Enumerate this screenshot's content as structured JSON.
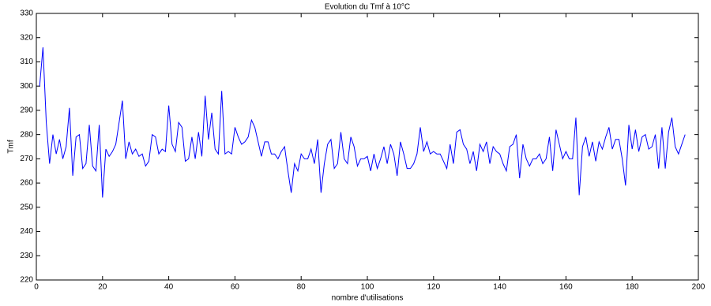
{
  "chart_data": {
    "type": "line",
    "title": "Evolution du Tmf à 10°C",
    "x_label": "nombre d'utilisations",
    "y_label": "Tmf",
    "x": [
      1,
      2,
      3,
      4,
      5,
      6,
      7,
      8,
      9,
      10,
      11,
      12,
      13,
      14,
      15,
      16,
      17,
      18,
      19,
      20,
      21,
      22,
      23,
      24,
      25,
      26,
      27,
      28,
      29,
      30,
      31,
      32,
      33,
      34,
      35,
      36,
      37,
      38,
      39,
      40,
      41,
      42,
      43,
      44,
      45,
      46,
      47,
      48,
      49,
      50,
      51,
      52,
      53,
      54,
      55,
      56,
      57,
      58,
      59,
      60,
      61,
      62,
      63,
      64,
      65,
      66,
      67,
      68,
      69,
      70,
      71,
      72,
      73,
      74,
      75,
      76,
      77,
      78,
      79,
      80,
      81,
      82,
      83,
      84,
      85,
      86,
      87,
      88,
      89,
      90,
      91,
      92,
      93,
      94,
      95,
      96,
      97,
      98,
      99,
      100,
      101,
      102,
      103,
      104,
      105,
      106,
      107,
      108,
      109,
      110,
      111,
      112,
      113,
      114,
      115,
      116,
      117,
      118,
      119,
      120,
      121,
      122,
      123,
      124,
      125,
      126,
      127,
      128,
      129,
      130,
      131,
      132,
      133,
      134,
      135,
      136,
      137,
      138,
      139,
      140,
      141,
      142,
      143,
      144,
      145,
      146,
      147,
      148,
      149,
      150,
      151,
      152,
      153,
      154,
      155,
      156,
      157,
      158,
      159,
      160,
      161,
      162,
      163,
      164,
      165,
      166,
      167,
      168,
      169,
      170,
      171,
      172,
      173,
      174,
      175,
      176,
      177,
      178,
      179,
      180,
      181,
      182,
      183,
      184,
      185,
      186,
      187,
      188,
      189,
      190,
      191,
      192,
      193,
      194,
      195,
      196
    ],
    "series": [
      {
        "name": "Tmf",
        "color": "#0000ff",
        "values": [
          300,
          316,
          285,
          268,
          280,
          272,
          278,
          270,
          275,
          291,
          263,
          279,
          280,
          266,
          268,
          284,
          267,
          265,
          284,
          254,
          274,
          271,
          273,
          276,
          285,
          294,
          270,
          277,
          272,
          274,
          271,
          272,
          267,
          269,
          280,
          279,
          272,
          274,
          273,
          292,
          276,
          273,
          285,
          283,
          269,
          270,
          279,
          270,
          281,
          271,
          296,
          278,
          289,
          274,
          272,
          298,
          272,
          273,
          272,
          283,
          279,
          276,
          277,
          279,
          286,
          283,
          277,
          271,
          277,
          277,
          272,
          272,
          270,
          273,
          275,
          265,
          256,
          268,
          265,
          272,
          270,
          270,
          274,
          268,
          278,
          256,
          268,
          276,
          278,
          266,
          268,
          281,
          270,
          268,
          279,
          275,
          267,
          270,
          270,
          271,
          265,
          272,
          266,
          270,
          275,
          268,
          276,
          272,
          263,
          277,
          272,
          266,
          266,
          268,
          272,
          283,
          273,
          277,
          272,
          273,
          272,
          272,
          269,
          266,
          276,
          268,
          281,
          282,
          276,
          274,
          268,
          273,
          265,
          276,
          273,
          277,
          268,
          275,
          273,
          272,
          268,
          265,
          275,
          276,
          280,
          262,
          276,
          270,
          267,
          270,
          270,
          272,
          268,
          270,
          279,
          265,
          282,
          276,
          270,
          273,
          270,
          270,
          287,
          255,
          275,
          279,
          271,
          277,
          269,
          277,
          274,
          279,
          283,
          274,
          278,
          278,
          270,
          259,
          284,
          274,
          282,
          273,
          279,
          280,
          274,
          275,
          280,
          266,
          283,
          266,
          281,
          287,
          275,
          272,
          276,
          280
        ]
      }
    ],
    "xlim": [
      0,
      200
    ],
    "xticks": [
      0,
      20,
      40,
      60,
      80,
      100,
      120,
      140,
      160,
      180,
      200
    ],
    "ylim": [
      220,
      330
    ],
    "yticks": [
      220,
      230,
      240,
      250,
      260,
      270,
      280,
      290,
      300,
      310,
      320,
      330
    ]
  }
}
